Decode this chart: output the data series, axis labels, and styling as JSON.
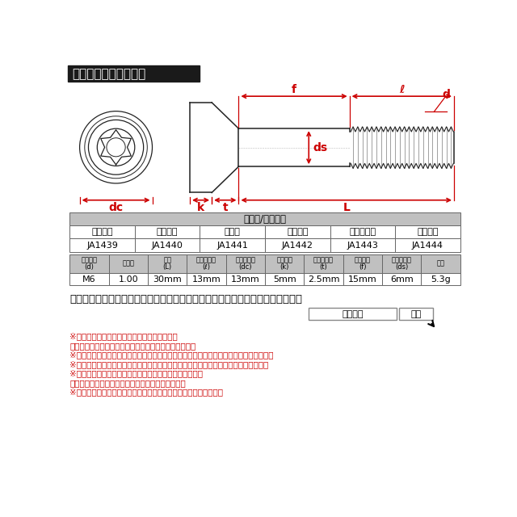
{
  "title_text": "ラインアップ＆サイズ",
  "title_bg": "#1a1a1a",
  "title_fg": "#ffffff",
  "bg_color": "#ffffff",
  "table1_header": "カラー/当店品番",
  "table1_row1": [
    "シルバー",
    "グリーン",
    "ブルー",
    "ゴールド",
    "焼きチタン",
    "ブラック"
  ],
  "table1_row2": [
    "JA1439",
    "JA1440",
    "JA1441",
    "JA1442",
    "JA1443",
    "JA1444"
  ],
  "table2_headers_line1": [
    "ネジ呼び",
    "ピッチ",
    "長さ",
    "ネジ部長さ",
    "フランジ径",
    "頭部高さ",
    "フランジ厚",
    "フック部",
    "円筒部直径",
    "重量"
  ],
  "table2_headers_line2": [
    "(d)",
    "",
    "(L)",
    "(ℓ)",
    "(dc)",
    "(k)",
    "(t)",
    "(f)",
    "(ds)",
    ""
  ],
  "table2_values": [
    "M6",
    "1.00",
    "30mm",
    "13mm",
    "13mm",
    "5mm",
    "2.5mm",
    "15mm",
    "6mm",
    "5.3g"
  ],
  "search_label": "ストア内検索に商品番号を入力するとお探しの商品に素早くアクセスできます。",
  "btn1": "商品番号",
  "btn2": "検索",
  "notes": [
    "※こちらの商品は、汎用品となっております。",
    "　必ず現車にてサイズをご確認の上、ご購入ください。",
    "※着色やサイズ・重量などには個体差がございます。予めご理解の上、ご購入ください。",
    "※ワッシャー・ゴムは付属していません。純正品から流用または別途ご用意ください。",
    "※チタンはカジリ（焼き付き）を起こしやすい材質です。",
    "　焼き付け防止ケミカル剤の併用をお勧めします。",
    "※ご注文確定後のサイズやカラー等の商品のご変更は出来ません。"
  ],
  "red": "#cc0000",
  "gray_header": "#c0c0c0",
  "line_color": "#222222",
  "table_border": "#666666"
}
